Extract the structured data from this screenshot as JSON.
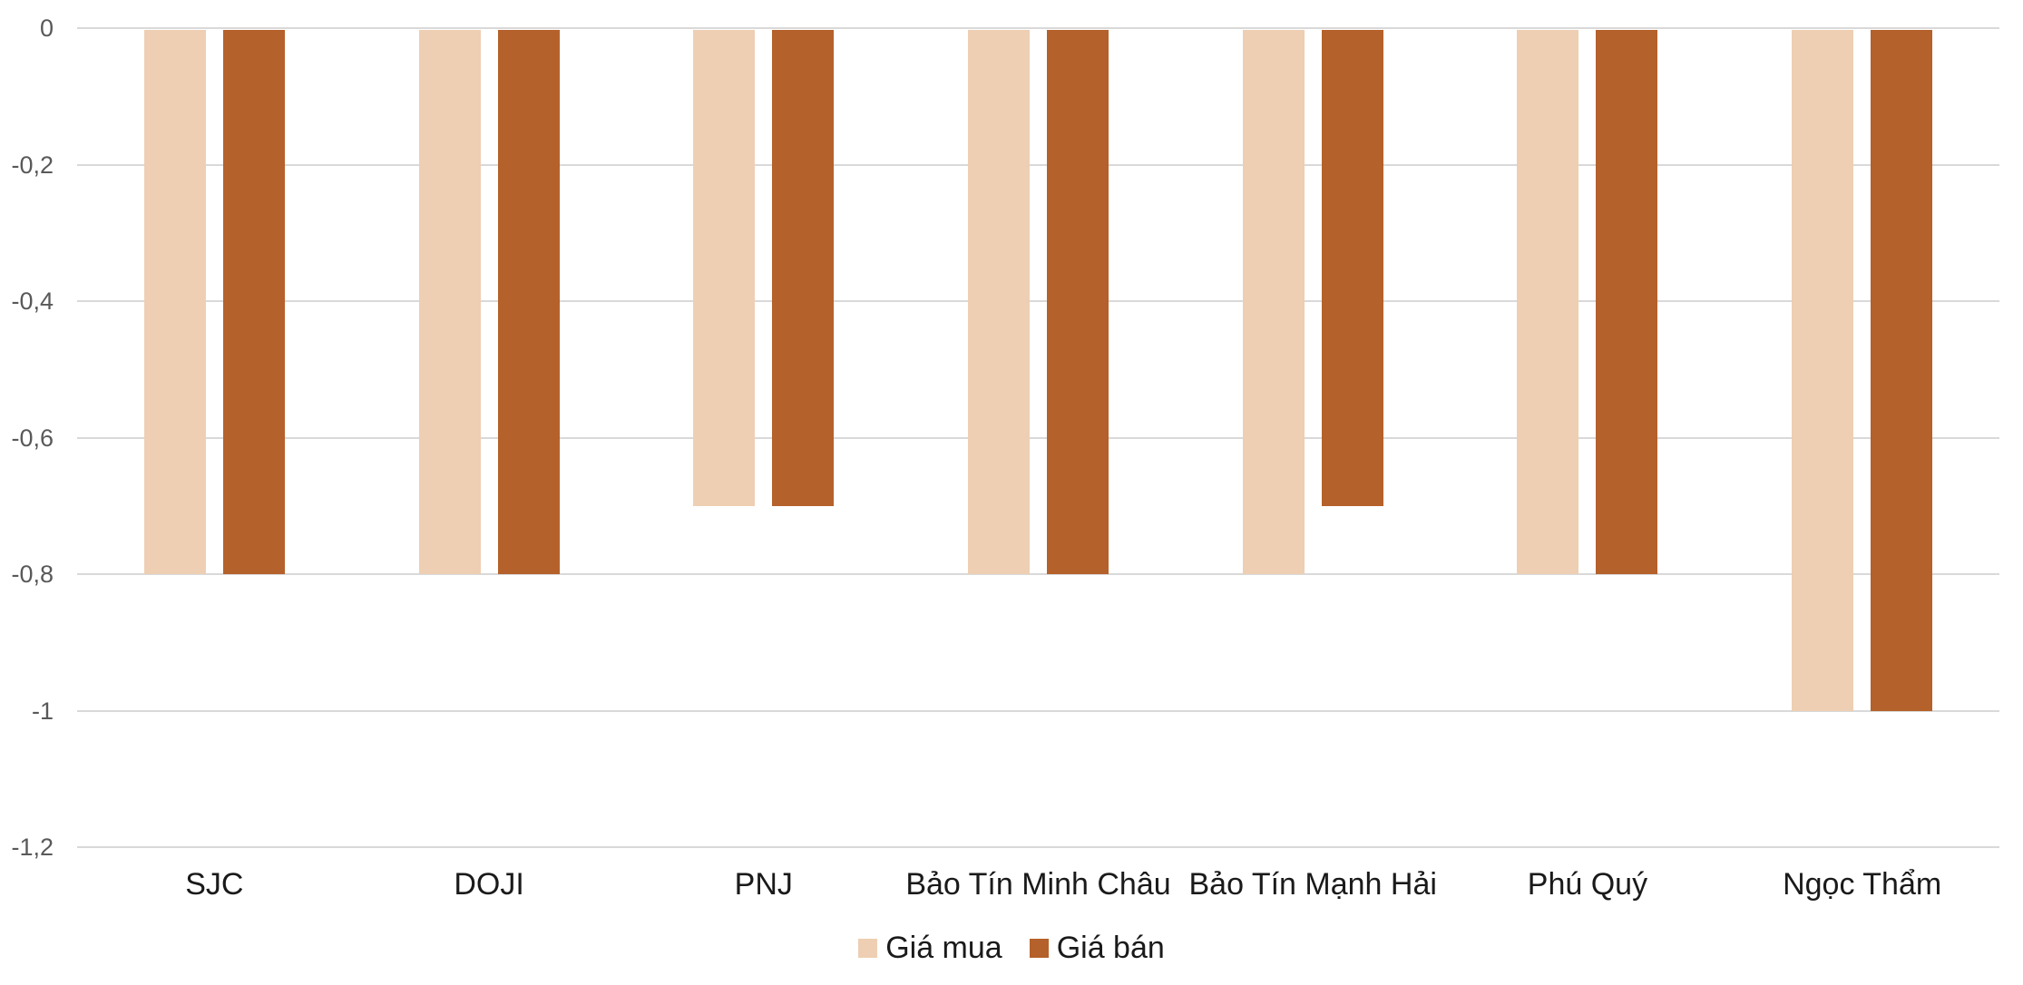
{
  "chart_data": {
    "type": "bar",
    "title": "",
    "xlabel": "",
    "ylabel": "",
    "categories": [
      "SJC",
      "DOJI",
      "PNJ",
      "Bảo Tín Minh Châu",
      "Bảo Tín Mạnh Hải",
      "Phú Quý",
      "Ngọc Thẩm"
    ],
    "series": [
      {
        "name": "Giá mua",
        "color": "#EECFB3",
        "values": [
          -0.8,
          -0.8,
          -0.7,
          -0.8,
          -0.8,
          -0.8,
          -1
        ]
      },
      {
        "name": "Giá bán",
        "color": "#B5612B",
        "values": [
          -0.8,
          -0.8,
          -0.7,
          -0.8,
          -0.7,
          -0.8,
          -1
        ]
      }
    ],
    "ylim": [
      -1.2,
      0
    ],
    "yticks": [
      0,
      -0.2,
      -0.4,
      -0.6,
      -0.8,
      -1,
      -1.2
    ],
    "ytick_labels": [
      "0",
      "-0,2",
      "-0,4",
      "-0,6",
      "-0,8",
      "-1",
      "-1,2"
    ],
    "grid": true,
    "legend_position": "bottom",
    "gridline_color": "#D9D9D9",
    "tick_label_color": "#595959",
    "category_label_color": "#1a1a1a",
    "background_color": "#FFFFFF"
  }
}
